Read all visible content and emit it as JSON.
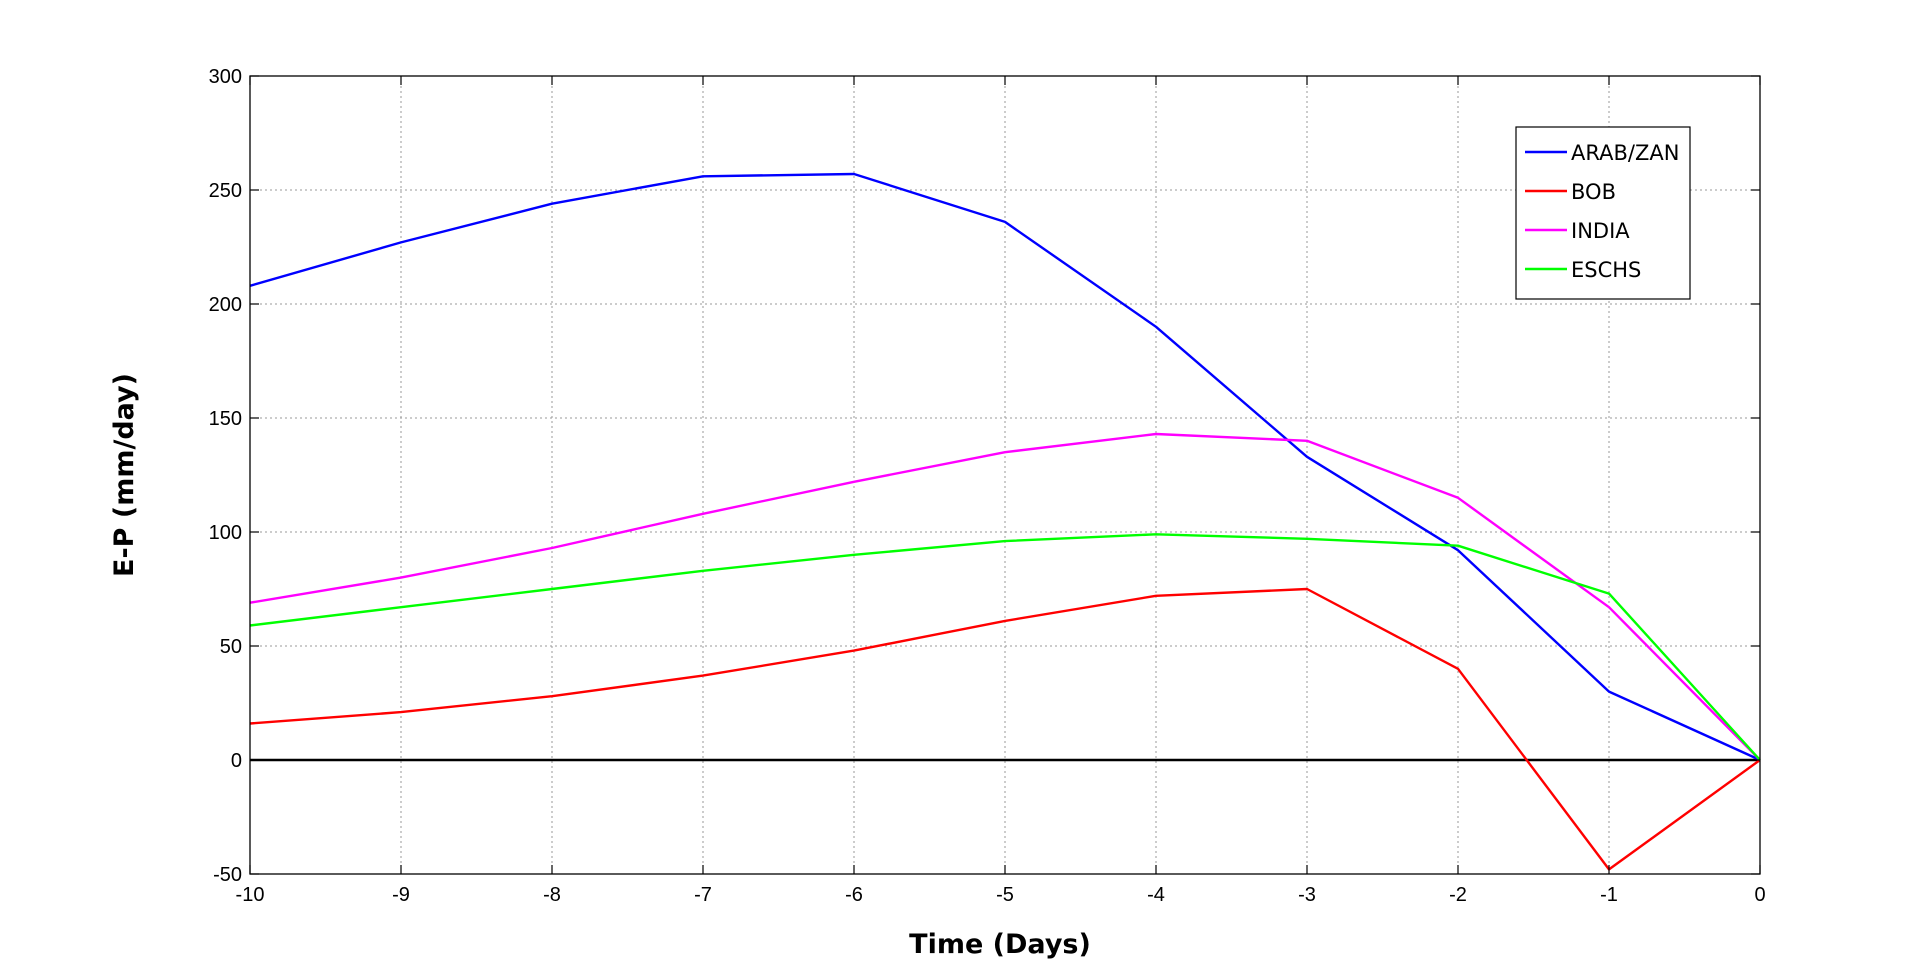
{
  "chart_data": {
    "type": "line",
    "xlabel": "Time (Days)",
    "ylabel": "E-P (mm/day)",
    "xlim": [
      -10,
      0
    ],
    "ylim": [
      -50,
      300
    ],
    "xticks": [
      -10,
      -9,
      -8,
      -7,
      -6,
      -5,
      -4,
      -3,
      -2,
      -1,
      0
    ],
    "yticks": [
      -50,
      0,
      50,
      100,
      150,
      200,
      250,
      300
    ],
    "grid": true,
    "legend_position": "top-right",
    "zero_line": true,
    "x": [
      -10,
      -9,
      -8,
      -7,
      -6,
      -5,
      -4,
      -3,
      -2,
      -1,
      0
    ],
    "series": [
      {
        "name": "ARAB/ZAN",
        "color": "#0000ff",
        "values": [
          208,
          227,
          244,
          256,
          257,
          236,
          190,
          133,
          92,
          30,
          0
        ]
      },
      {
        "name": "BOB",
        "color": "#ff0000",
        "values": [
          16,
          21,
          28,
          37,
          48,
          61,
          72,
          75,
          40,
          -48,
          0
        ]
      },
      {
        "name": "INDIA",
        "color": "#ff00ff",
        "values": [
          69,
          80,
          93,
          108,
          122,
          135,
          143,
          140,
          115,
          67,
          0
        ]
      },
      {
        "name": "ESCHS",
        "color": "#00ff00",
        "values": [
          59,
          67,
          75,
          83,
          90,
          96,
          99,
          97,
          94,
          73,
          0
        ]
      }
    ]
  }
}
